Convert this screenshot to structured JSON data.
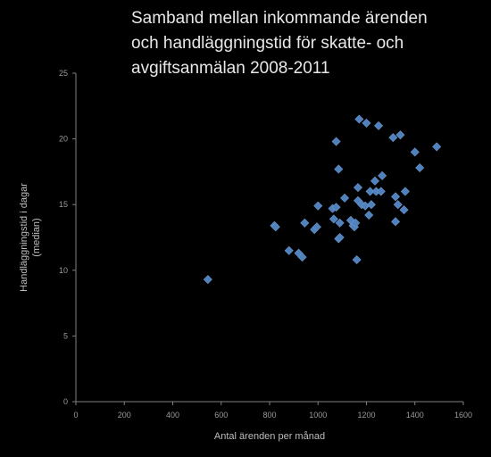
{
  "chart_data": {
    "type": "scatter",
    "title_lines": [
      "Samband mellan inkommande ärenden",
      "och handläggningstid för skatte- och",
      "avgiftsanmälan 2008-2011"
    ],
    "xlabel": "Antal ärenden per månad",
    "ylabel_lines": [
      "Handläggningstid i dagar",
      "(median)"
    ],
    "xlim": [
      0,
      1600
    ],
    "ylim": [
      0,
      25
    ],
    "xticks": [
      0,
      200,
      400,
      600,
      800,
      1000,
      1200,
      1400,
      1600
    ],
    "yticks": [
      0,
      5,
      10,
      15,
      20,
      25
    ],
    "grid": false,
    "marker_color": "#4f81bd",
    "points": [
      [
        545,
        9.3
      ],
      [
        820,
        13.4
      ],
      [
        825,
        13.3
      ],
      [
        880,
        11.5
      ],
      [
        920,
        11.3
      ],
      [
        935,
        11.0
      ],
      [
        945,
        13.6
      ],
      [
        985,
        13.1
      ],
      [
        995,
        13.3
      ],
      [
        1000,
        14.9
      ],
      [
        1060,
        14.7
      ],
      [
        1075,
        14.8
      ],
      [
        1065,
        13.9
      ],
      [
        1075,
        19.8
      ],
      [
        1085,
        17.7
      ],
      [
        1085,
        12.4
      ],
      [
        1090,
        12.5
      ],
      [
        1090,
        13.6
      ],
      [
        1110,
        15.5
      ],
      [
        1135,
        13.8
      ],
      [
        1145,
        13.4
      ],
      [
        1150,
        13.3
      ],
      [
        1155,
        13.6
      ],
      [
        1160,
        10.8
      ],
      [
        1165,
        15.3
      ],
      [
        1165,
        16.3
      ],
      [
        1170,
        21.5
      ],
      [
        1180,
        15.0
      ],
      [
        1195,
        14.9
      ],
      [
        1200,
        21.2
      ],
      [
        1210,
        14.2
      ],
      [
        1215,
        16.0
      ],
      [
        1220,
        15.0
      ],
      [
        1235,
        16.8
      ],
      [
        1240,
        16.0
      ],
      [
        1250,
        21.0
      ],
      [
        1260,
        16.0
      ],
      [
        1265,
        17.2
      ],
      [
        1310,
        20.1
      ],
      [
        1320,
        15.6
      ],
      [
        1320,
        13.7
      ],
      [
        1330,
        15.0
      ],
      [
        1340,
        20.3
      ],
      [
        1355,
        14.6
      ],
      [
        1360,
        16.0
      ],
      [
        1400,
        19.0
      ],
      [
        1420,
        17.8
      ],
      [
        1490,
        19.4
      ]
    ]
  }
}
